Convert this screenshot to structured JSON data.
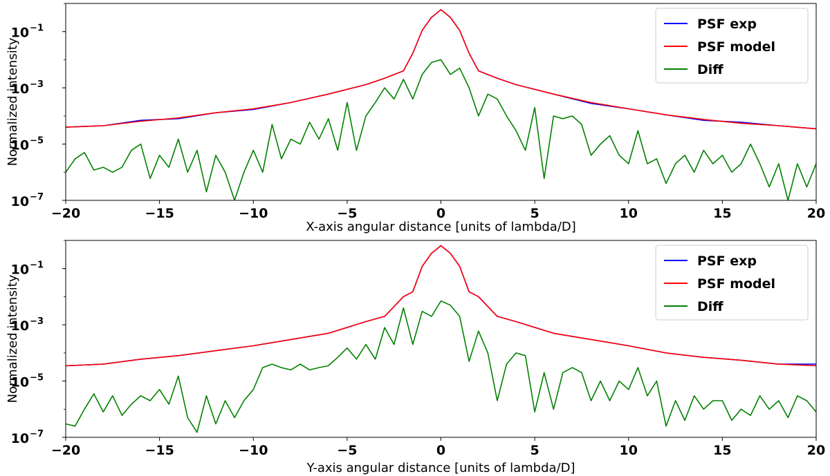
{
  "chart_data": [
    {
      "type": "line",
      "xlabel": "X-axis angular distance [units of lambda/D]",
      "ylabel": "Normalized intensity",
      "xlim": [
        -20,
        20
      ],
      "ylim": [
        1e-07,
        1
      ],
      "yscale": "log",
      "xticks": [
        -20,
        -15,
        -10,
        -5,
        0,
        5,
        10,
        15,
        20
      ],
      "xtick_labels": [
        "−20",
        "−15",
        "−10",
        "−5",
        "0",
        "5",
        "10",
        "15",
        "20"
      ],
      "yticks": [
        1e-07,
        1e-05,
        0.001,
        0.1
      ],
      "ytick_mantissa": [
        "10",
        "10",
        "10",
        "10"
      ],
      "ytick_exponent": [
        "−7",
        "−5",
        "−3",
        "−1"
      ],
      "legend": "top-right",
      "grid": false,
      "series": [
        {
          "name": "PSF exp",
          "color": "#0000ff",
          "x": [
            -20,
            -18,
            -16,
            -14,
            -12,
            -10,
            -8,
            -6,
            -4,
            -3,
            -2,
            -1.5,
            -1,
            -0.5,
            0,
            0.5,
            1,
            1.5,
            2,
            3,
            4,
            6,
            8,
            10,
            12,
            14,
            16,
            18,
            20
          ],
          "y": [
            4e-05,
            4.5e-05,
            7e-05,
            8e-05,
            0.00013,
            0.00017,
            0.0003,
            0.0006,
            0.0013,
            0.0022,
            0.004,
            0.017,
            0.11,
            0.32,
            0.6,
            0.32,
            0.11,
            0.017,
            0.004,
            0.0022,
            0.0013,
            0.0006,
            0.00028,
            0.00018,
            0.00011,
            7e-05,
            6e-05,
            4.5e-05,
            3.5e-05
          ]
        },
        {
          "name": "PSF model",
          "color": "#ff0000",
          "x": [
            -20,
            -18,
            -16,
            -14,
            -12,
            -10,
            -8,
            -6,
            -4,
            -3,
            -2,
            -1.5,
            -1,
            -0.5,
            0,
            0.5,
            1,
            1.5,
            2,
            3,
            4,
            6,
            8,
            10,
            12,
            14,
            16,
            18,
            20
          ],
          "y": [
            4e-05,
            4.5e-05,
            6.5e-05,
            8.5e-05,
            0.00013,
            0.00018,
            0.0003,
            0.0006,
            0.0013,
            0.0022,
            0.004,
            0.017,
            0.11,
            0.32,
            0.6,
            0.32,
            0.11,
            0.017,
            0.004,
            0.0022,
            0.0013,
            0.0006,
            0.0003,
            0.00018,
            0.00011,
            7.5e-05,
            5.5e-05,
            4.5e-05,
            3.5e-05
          ]
        },
        {
          "name": "Diff",
          "color": "#008000",
          "x": [
            -20,
            -19.5,
            -19,
            -18.5,
            -18,
            -17.5,
            -17,
            -16.5,
            -16,
            -15.5,
            -15,
            -14.5,
            -14,
            -13.5,
            -13,
            -12.5,
            -12,
            -11.5,
            -11,
            -10.5,
            -10,
            -9.5,
            -9,
            -8.5,
            -8,
            -7.5,
            -7,
            -6.5,
            -6,
            -5.5,
            -5,
            -4.5,
            -4,
            -3.5,
            -3,
            -2.5,
            -2,
            -1.5,
            -1,
            -0.5,
            0,
            0.5,
            1,
            1.5,
            2,
            2.5,
            3,
            3.5,
            4,
            4.5,
            5,
            5.5,
            6,
            6.5,
            7,
            7.5,
            8,
            8.5,
            9,
            9.5,
            10,
            10.5,
            11,
            11.5,
            12,
            12.5,
            13,
            13.5,
            14,
            14.5,
            15,
            15.5,
            16,
            16.5,
            17,
            17.5,
            18,
            18.5,
            19,
            19.5,
            20
          ],
          "y": [
            1e-06,
            3e-06,
            5e-06,
            1.2e-06,
            1.5e-06,
            1e-06,
            1.5e-06,
            6e-06,
            1e-05,
            6e-07,
            4e-06,
            1.5e-06,
            1.5e-05,
            1e-06,
            6e-06,
            2e-07,
            4e-06,
            1e-06,
            1e-07,
            1e-06,
            6e-06,
            1e-06,
            5e-05,
            3e-06,
            1.5e-05,
            1e-05,
            6e-05,
            1.5e-05,
            8e-05,
            6e-06,
            0.0003,
            6e-06,
            0.0001,
            0.0003,
            0.001,
            0.0004,
            0.002,
            0.0004,
            0.003,
            0.008,
            0.01,
            0.003,
            0.005,
            0.001,
            0.0001,
            0.0006,
            0.0004,
            0.0001,
            3e-05,
            6e-06,
            0.0002,
            6e-07,
            0.0001,
            8e-05,
            0.0001,
            5e-05,
            4e-06,
            1e-05,
            2e-05,
            4e-06,
            2e-06,
            3e-05,
            2e-06,
            3e-06,
            4e-07,
            2e-06,
            4e-06,
            1e-06,
            6e-06,
            2e-06,
            4e-06,
            1e-06,
            2e-06,
            1e-05,
            2e-06,
            3e-07,
            2e-06,
            1e-07,
            2e-06,
            3e-07,
            2e-06
          ]
        }
      ]
    },
    {
      "type": "line",
      "xlabel": "Y-axis angular distance [units of lambda/D]",
      "ylabel": "Normalized intensity",
      "xlim": [
        -20,
        20
      ],
      "ylim": [
        1e-07,
        1
      ],
      "yscale": "log",
      "xticks": [
        -20,
        -15,
        -10,
        -5,
        0,
        5,
        10,
        15,
        20
      ],
      "xtick_labels": [
        "−20",
        "−15",
        "−10",
        "−5",
        "0",
        "5",
        "10",
        "15",
        "20"
      ],
      "yticks": [
        1e-07,
        1e-05,
        0.001,
        0.1
      ],
      "ytick_mantissa": [
        "10",
        "10",
        "10",
        "10"
      ],
      "ytick_exponent": [
        "−7",
        "−5",
        "−3",
        "−1"
      ],
      "legend": "top-right",
      "grid": false,
      "series": [
        {
          "name": "PSF exp",
          "color": "#0000ff",
          "x": [
            -20,
            -18,
            -16,
            -14,
            -12,
            -10,
            -8,
            -6,
            -4,
            -3,
            -2,
            -1.5,
            -1,
            -0.5,
            0,
            0.5,
            1,
            1.5,
            2,
            3,
            4,
            6,
            8,
            10,
            12,
            14,
            16,
            18,
            20
          ],
          "y": [
            3.5e-05,
            4e-05,
            6e-05,
            8e-05,
            0.00012,
            0.00018,
            0.0003,
            0.0005,
            0.0013,
            0.002,
            0.01,
            0.015,
            0.12,
            0.35,
            0.65,
            0.35,
            0.12,
            0.015,
            0.01,
            0.002,
            0.0013,
            0.0005,
            0.0003,
            0.00018,
            0.0001,
            7e-05,
            5.5e-05,
            4e-05,
            4e-05
          ]
        },
        {
          "name": "PSF model",
          "color": "#ff0000",
          "x": [
            -20,
            -18,
            -16,
            -14,
            -12,
            -10,
            -8,
            -6,
            -4,
            -3,
            -2,
            -1.5,
            -1,
            -0.5,
            0,
            0.5,
            1,
            1.5,
            2,
            3,
            4,
            6,
            8,
            10,
            12,
            14,
            16,
            18,
            20
          ],
          "y": [
            3.5e-05,
            4e-05,
            6e-05,
            8e-05,
            0.00012,
            0.00018,
            0.0003,
            0.0005,
            0.0013,
            0.002,
            0.01,
            0.015,
            0.12,
            0.35,
            0.65,
            0.35,
            0.12,
            0.015,
            0.01,
            0.002,
            0.0013,
            0.0005,
            0.0003,
            0.00018,
            0.0001,
            7e-05,
            5.5e-05,
            4e-05,
            3.5e-05
          ]
        },
        {
          "name": "Diff",
          "color": "#008000",
          "x": [
            -20,
            -19.5,
            -19,
            -18.5,
            -18,
            -17.5,
            -17,
            -16.5,
            -16,
            -15.5,
            -15,
            -14.5,
            -14,
            -13.5,
            -13,
            -12.5,
            -12,
            -11.5,
            -11,
            -10.5,
            -10,
            -9.5,
            -9,
            -8.5,
            -8,
            -7.5,
            -7,
            -6.5,
            -6,
            -5.5,
            -5,
            -4.5,
            -4,
            -3.5,
            -3,
            -2.5,
            -2,
            -1.5,
            -1,
            -0.5,
            0,
            0.5,
            1,
            1.5,
            2,
            2.5,
            3,
            3.5,
            4,
            4.5,
            5,
            5.5,
            6,
            6.5,
            7,
            7.5,
            8,
            8.5,
            9,
            9.5,
            10,
            10.5,
            11,
            11.5,
            12,
            12.5,
            13,
            13.5,
            14,
            14.5,
            15,
            15.5,
            16,
            16.5,
            17,
            17.5,
            18,
            18.5,
            19,
            19.5,
            20
          ],
          "y": [
            3e-07,
            2.5e-07,
            1e-06,
            3.5e-06,
            8e-07,
            3e-06,
            6e-07,
            1.5e-06,
            3e-06,
            2e-06,
            5e-06,
            1.5e-06,
            1.5e-05,
            5e-07,
            1.5e-07,
            3e-06,
            3e-07,
            2e-06,
            5e-07,
            2e-06,
            5e-06,
            3e-05,
            4e-05,
            3e-05,
            2.5e-05,
            4e-05,
            2.5e-05,
            3e-05,
            3.5e-05,
            7e-05,
            0.00015,
            6e-05,
            0.0002,
            6e-05,
            0.0008,
            0.0002,
            0.004,
            0.0002,
            0.003,
            0.002,
            0.007,
            0.005,
            0.002,
            5e-05,
            0.0006,
            0.0001,
            2e-06,
            4e-05,
            0.0001,
            8e-05,
            8e-07,
            2e-05,
            1e-06,
            2e-05,
            3e-05,
            2e-05,
            2e-06,
            1e-05,
            2e-06,
            1e-05,
            5e-06,
            3e-05,
            3e-06,
            1e-05,
            2.5e-07,
            2e-06,
            4e-07,
            3e-06,
            1e-06,
            2e-06,
            2e-06,
            4e-07,
            1e-06,
            6e-07,
            3e-06,
            1e-06,
            2e-06,
            5e-07,
            3e-06,
            2e-06,
            8e-07
          ]
        }
      ]
    }
  ]
}
